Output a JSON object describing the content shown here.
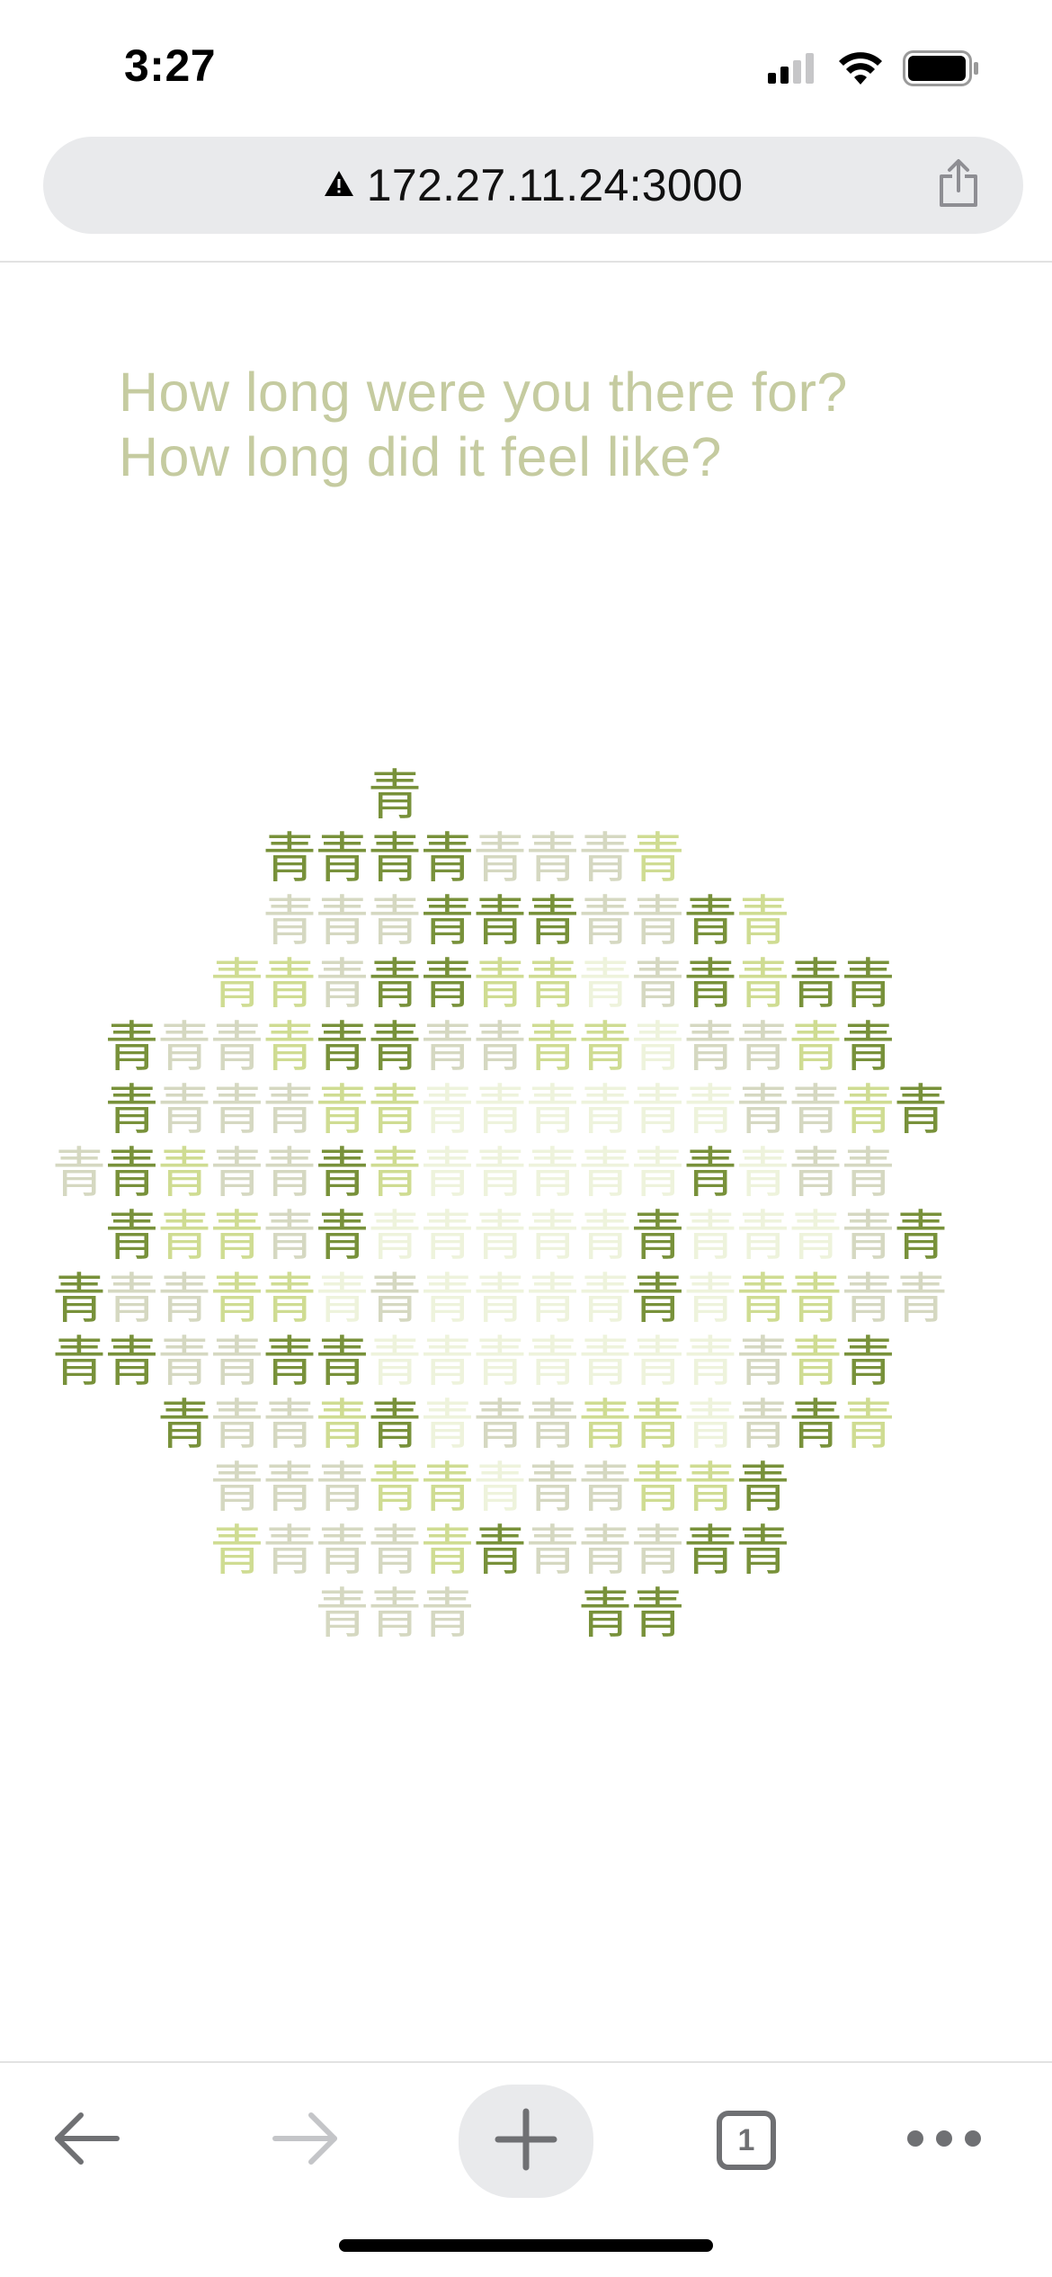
{
  "status_bar": {
    "time": "3:27"
  },
  "address_bar": {
    "url": "172.27.11.24:3000",
    "warning_icon": "warning-triangle-icon",
    "share_icon": "share-icon"
  },
  "content": {
    "question_lines": [
      "How long were you there for?",
      "How long did it feel like?"
    ],
    "glyph_char": "青",
    "colors": {
      "question": "#c5cba0",
      "dark_green": "#78913a",
      "light_green": "#cfdc92",
      "grey_green": "#d5d8c1",
      "pale_green": "#eef3dc"
    },
    "glyph_rows": [
      {
        "row": 0,
        "cols": [
          6
        ]
      },
      {
        "row": 1,
        "cols": [
          4,
          5,
          6,
          7,
          8,
          9,
          10,
          11
        ]
      },
      {
        "row": 2,
        "cols": [
          4,
          5,
          6,
          7,
          8,
          9,
          10,
          11,
          12,
          13
        ]
      },
      {
        "row": 3,
        "cols": [
          3,
          4,
          5,
          6,
          7,
          8,
          9,
          10,
          11,
          12,
          13,
          14,
          15
        ]
      },
      {
        "row": 4,
        "cols": [
          1,
          2,
          3,
          4,
          5,
          6,
          7,
          8,
          9,
          10,
          11,
          12,
          13,
          14,
          15
        ]
      },
      {
        "row": 5,
        "cols": [
          1,
          2,
          3,
          4,
          5,
          6,
          7,
          8,
          9,
          10,
          11,
          12,
          13,
          14,
          15,
          16
        ]
      },
      {
        "row": 6,
        "cols": [
          0,
          1,
          2,
          3,
          4,
          5,
          6,
          7,
          8,
          9,
          10,
          11,
          12,
          13,
          14,
          15
        ]
      },
      {
        "row": 7,
        "cols": [
          1,
          2,
          3,
          4,
          5,
          6,
          7,
          8,
          9,
          10,
          11,
          12,
          13,
          14,
          15,
          16
        ]
      },
      {
        "row": 8,
        "cols": [
          0,
          1,
          2,
          3,
          4,
          5,
          6,
          7,
          8,
          9,
          10,
          11,
          12,
          13,
          14,
          15,
          16
        ]
      },
      {
        "row": 9,
        "cols": [
          0,
          1,
          2,
          3,
          4,
          5,
          6,
          7,
          8,
          9,
          10,
          11,
          12,
          13,
          14,
          15
        ]
      },
      {
        "row": 10,
        "cols": [
          2,
          3,
          4,
          5,
          6,
          7,
          8,
          9,
          10,
          11,
          12,
          13,
          14,
          15
        ]
      },
      {
        "row": 11,
        "cols": [
          3,
          4,
          5,
          6,
          7,
          8,
          9,
          10,
          11,
          12,
          13
        ]
      },
      {
        "row": 12,
        "cols": [
          3,
          4,
          5,
          6,
          7,
          8,
          9,
          10,
          11,
          12,
          13
        ]
      },
      {
        "row": 13,
        "cols": [
          5,
          6,
          7,
          10,
          11
        ]
      }
    ],
    "dark_glyphs": [
      [
        0,
        6
      ],
      [
        1,
        4
      ],
      [
        1,
        5
      ],
      [
        1,
        6
      ],
      [
        1,
        7
      ],
      [
        2,
        7
      ],
      [
        2,
        8
      ],
      [
        2,
        9
      ],
      [
        2,
        12
      ],
      [
        3,
        6
      ],
      [
        3,
        7
      ],
      [
        3,
        12
      ],
      [
        3,
        14
      ],
      [
        3,
        15
      ],
      [
        4,
        1
      ],
      [
        4,
        5
      ],
      [
        4,
        6
      ],
      [
        4,
        15
      ],
      [
        5,
        1
      ],
      [
        5,
        16
      ],
      [
        6,
        1
      ],
      [
        6,
        5
      ],
      [
        6,
        12
      ],
      [
        7,
        1
      ],
      [
        7,
        5
      ],
      [
        7,
        11
      ],
      [
        7,
        16
      ],
      [
        8,
        0
      ],
      [
        8,
        11
      ],
      [
        9,
        0
      ],
      [
        9,
        1
      ],
      [
        9,
        4
      ],
      [
        9,
        5
      ],
      [
        9,
        15
      ],
      [
        10,
        2
      ],
      [
        10,
        6
      ],
      [
        10,
        14
      ],
      [
        11,
        13
      ],
      [
        12,
        8
      ],
      [
        12,
        12
      ],
      [
        12,
        13
      ],
      [
        13,
        10
      ],
      [
        13,
        11
      ]
    ]
  },
  "toolbar": {
    "back_icon": "back-arrow-icon",
    "forward_icon": "forward-arrow-icon",
    "new_tab_icon": "plus-icon",
    "tab_count": "1",
    "more_icon": "more-dots-icon"
  }
}
